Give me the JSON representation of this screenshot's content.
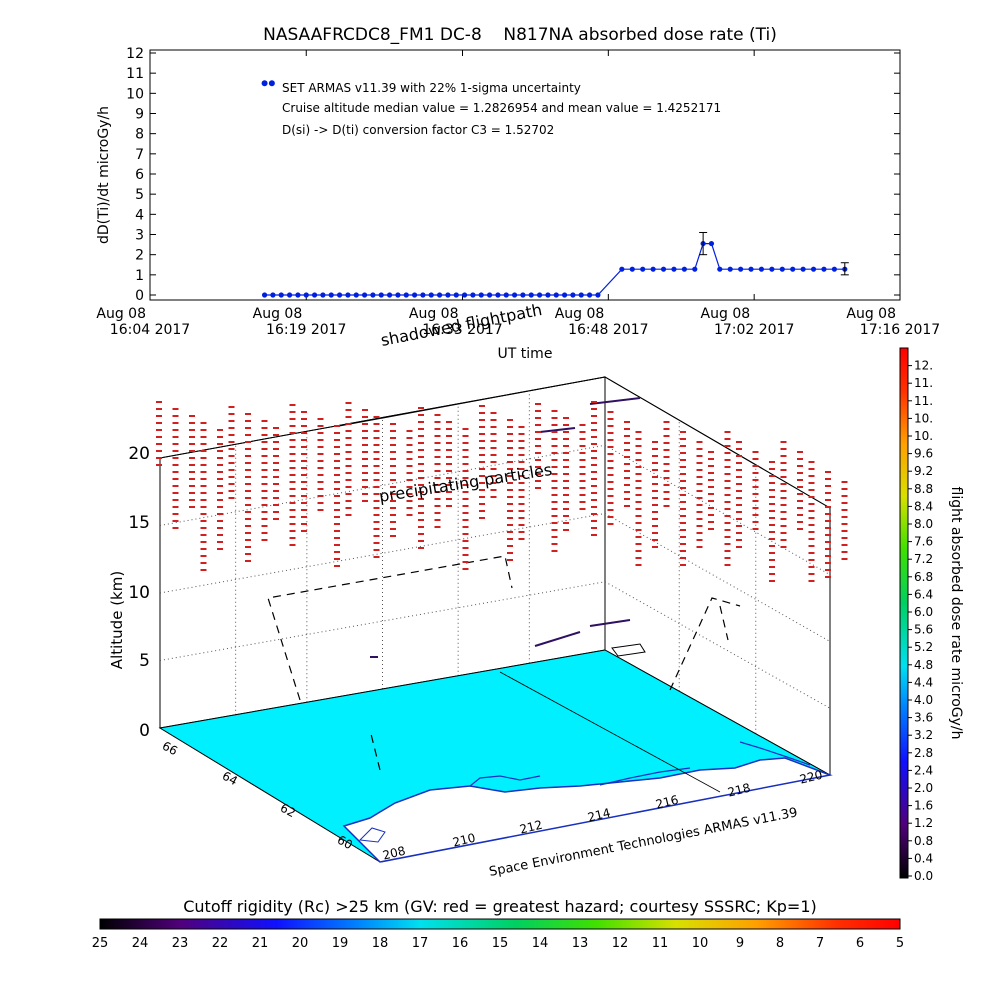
{
  "colors": {
    "ocean": "#00f0ff",
    "land": "#ffffff",
    "coast": "#2030c0",
    "series": "#0020e0",
    "precip": "#d02020",
    "track": "#102050"
  },
  "chart_data": [
    {
      "type": "line",
      "title": "NASAAFRCDC8_FM1 DC-8    N817NA absorbed dose rate (Ti)",
      "xlabel": "UT time",
      "ylabel": "dD(Ti)/dt microGy/h",
      "ylim": [
        0,
        12
      ],
      "xlim_minutes": [
        0,
        72
      ],
      "ytick_labels": [
        "0",
        "1",
        "2",
        "3",
        "4",
        "5",
        "6",
        "7",
        "8",
        "9",
        "10",
        "11",
        "12"
      ],
      "xtick_labels": [
        {
          "minute": 0,
          "line1": "Aug 08",
          "line2": "16:04 2017"
        },
        {
          "minute": 15,
          "line1": "Aug 08",
          "line2": "16:19 2017"
        },
        {
          "minute": 30,
          "line1": "Aug 08",
          "line2": "16:33 2017"
        },
        {
          "minute": 44,
          "line1": "Aug 08",
          "line2": "16:48 2017"
        },
        {
          "minute": 58,
          "line1": "Aug 08",
          "line2": "17:02 2017"
        },
        {
          "minute": 72,
          "line1": "Aug 08",
          "line2": "17:16 2017"
        }
      ],
      "annotations": [
        "SET ARMAS v11.39 with 22% 1-sigma uncertainty",
        "Cruise altitude median value = 1.2826954 and mean value = 1.4252171",
        "D(si) -> D(ti) conversion factor C3 = 1.52702"
      ],
      "series": [
        {
          "x": [
            11,
            11.8,
            12.6,
            13.4,
            14.2,
            15,
            15.8,
            16.6,
            17.4,
            18.2,
            19,
            19.8,
            20.6,
            21.4,
            22.2,
            23,
            23.8,
            24.6,
            25.4,
            26.2,
            27,
            27.8,
            28.6,
            29.4,
            30.2,
            31,
            31.8,
            32.6,
            33.4,
            34.2,
            35,
            35.8,
            36.6,
            37.4,
            38.2,
            39,
            39.8,
            40.6,
            41.4,
            42.2,
            43,
            45.3,
            46.3,
            47.3,
            48.3,
            49.3,
            50.3,
            51.3,
            52.3,
            53.1,
            53.9,
            54.7,
            55.7,
            56.7,
            57.7,
            58.7,
            59.7,
            60.7,
            61.7,
            62.7,
            63.7,
            64.7,
            65.7,
            66.7
          ],
          "y": [
            0,
            0,
            0,
            0,
            0,
            0,
            0,
            0,
            0,
            0,
            0,
            0,
            0,
            0,
            0,
            0,
            0,
            0,
            0,
            0,
            0,
            0,
            0,
            0,
            0,
            0,
            0,
            0,
            0,
            0,
            0,
            0,
            0,
            0,
            0,
            0,
            0,
            0,
            0,
            0,
            0,
            1.28,
            1.28,
            1.28,
            1.28,
            1.28,
            1.28,
            1.28,
            1.28,
            2.55,
            2.55,
            1.28,
            1.28,
            1.28,
            1.28,
            1.28,
            1.28,
            1.28,
            1.28,
            1.28,
            1.28,
            1.28,
            1.28,
            1.28
          ]
        }
      ],
      "error_bars": [
        {
          "x": 53.1,
          "low": 2.0,
          "high": 3.1
        },
        {
          "x": 66.7,
          "low": 1.0,
          "high": 1.6
        }
      ],
      "outlier_points": [
        {
          "x": 11,
          "y": 10.5
        },
        {
          "x": 11.7,
          "y": 10.5
        }
      ]
    },
    {
      "type": "scatter",
      "dimensions": 3,
      "zlabel": "Altitude (km)",
      "zticks": [
        "0",
        "5",
        "10",
        "15",
        "20"
      ],
      "xticks": [
        "208",
        "210",
        "212",
        "214",
        "216",
        "218",
        "220"
      ],
      "yticks": [
        "60",
        "62",
        "64",
        "66"
      ],
      "text_labels": [
        "shadowed flightpath",
        "precipitating particles"
      ],
      "caption": "Space Environment Technologies ARMAS v11.39",
      "colorbar": {
        "label": "flight absorbed dose rate microGy/h",
        "ticks": [
          "0.0",
          "0.4",
          "0.8",
          "1.2",
          "1.6",
          "2.0",
          "2.4",
          "2.8",
          "3.2",
          "3.6",
          "4.0",
          "4.4",
          "4.8",
          "5.2",
          "5.6",
          "6.0",
          "6.4",
          "6.8",
          "7.2",
          "7.6",
          "8.0",
          "8.4",
          "8.8",
          "9.2",
          "9.6",
          "10.",
          "10.",
          "11.",
          "11.",
          "12."
        ]
      }
    }
  ],
  "rigidity_bar": {
    "label": "Cutoff rigidity (Rc) >25 km (GV: red = greatest hazard; courtesy SSSRC; Kp=1)",
    "ticks": [
      "25",
      "24",
      "23",
      "22",
      "21",
      "20",
      "19",
      "18",
      "17",
      "16",
      "15",
      "14",
      "13",
      "12",
      "11",
      "10",
      "9",
      "8",
      "7",
      "6",
      "5"
    ]
  }
}
